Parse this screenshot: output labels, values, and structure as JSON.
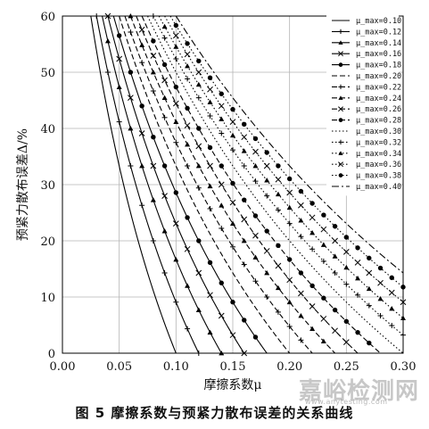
{
  "caption": "图 5   摩擦系数与预紧力散布误差的关系曲线",
  "watermark": {
    "text": "嘉峪检测网",
    "sub": "www.anytesting.com"
  },
  "chart_data": {
    "type": "line",
    "xlabel": "摩擦系数μ",
    "ylabel": "预紧力散布误差Δ/%",
    "xlim": [
      0,
      0.3
    ],
    "ylim": [
      0,
      60
    ],
    "x_ticks": [
      "0.00",
      "0.05",
      "0.10",
      "0.15",
      "0.20",
      "0.25",
      "0.30"
    ],
    "y_ticks": [
      "0",
      "10",
      "20",
      "30",
      "40",
      "50",
      "60"
    ],
    "grid": true,
    "legend_position": "top-right",
    "series": [
      {
        "name": "μ_max=0.10",
        "mu_max": 0.1,
        "marker": "none",
        "dash": "solid"
      },
      {
        "name": "μ_max=0.12",
        "mu_max": 0.12,
        "marker": "plus",
        "dash": "solid"
      },
      {
        "name": "μ_max=0.14",
        "mu_max": 0.14,
        "marker": "triangle",
        "dash": "solid"
      },
      {
        "name": "μ_max=0.16",
        "mu_max": 0.16,
        "marker": "x",
        "dash": "solid"
      },
      {
        "name": "μ_max=0.18",
        "mu_max": 0.18,
        "marker": "circle",
        "dash": "solid"
      },
      {
        "name": "μ_max=0.20",
        "mu_max": 0.2,
        "marker": "none",
        "dash": "dash"
      },
      {
        "name": "μ_max=0.22",
        "mu_max": 0.22,
        "marker": "plus",
        "dash": "dash"
      },
      {
        "name": "μ_max=0.24",
        "mu_max": 0.24,
        "marker": "triangle",
        "dash": "dash"
      },
      {
        "name": "μ_max=0.26",
        "mu_max": 0.26,
        "marker": "x",
        "dash": "dash"
      },
      {
        "name": "μ_max=0.28",
        "mu_max": 0.28,
        "marker": "circle",
        "dash": "dash"
      },
      {
        "name": "μ_max=0.30",
        "mu_max": 0.3,
        "marker": "none",
        "dash": "dot"
      },
      {
        "name": "μ_max=0.32",
        "mu_max": 0.32,
        "marker": "plus",
        "dash": "dot"
      },
      {
        "name": "μ_max=0.34",
        "mu_max": 0.34,
        "marker": "triangle",
        "dash": "dot"
      },
      {
        "name": "μ_max=0.36",
        "mu_max": 0.36,
        "marker": "x",
        "dash": "dot"
      },
      {
        "name": "μ_max=0.38",
        "mu_max": 0.38,
        "marker": "circle",
        "dash": "dot"
      },
      {
        "name": "μ_max=0.40",
        "mu_max": 0.4,
        "marker": "none",
        "dash": "dashdot"
      }
    ]
  }
}
